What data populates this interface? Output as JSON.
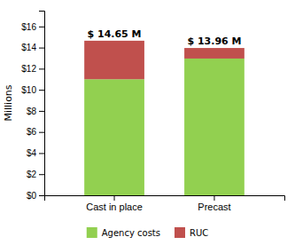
{
  "chart_data": {
    "type": "bar",
    "stacked": true,
    "categories": [
      "Cast in place",
      "Precast"
    ],
    "series": [
      {
        "name": "Agency costs",
        "color": "#92D050",
        "values": [
          11.0,
          12.96
        ]
      },
      {
        "name": "RUC",
        "color": "#C0504D",
        "values": [
          3.65,
          1.0
        ]
      }
    ],
    "annotations": [
      {
        "text": "$ 14.65 M",
        "x": "Cast in place",
        "y": 14.65
      },
      {
        "text": "$ 13.96 M",
        "x": "Precast",
        "y": 13.96
      }
    ],
    "y_label": "Millions",
    "ylim": [
      0,
      17.5
    ],
    "yticks": [
      {
        "value": 0,
        "label": "$0"
      },
      {
        "value": 2,
        "label": "$2"
      },
      {
        "value": 4,
        "label": "$4"
      },
      {
        "value": 6,
        "label": "$6"
      },
      {
        "value": 8,
        "label": "$8"
      },
      {
        "value": 10,
        "label": "$10"
      },
      {
        "value": 12,
        "label": "$12"
      },
      {
        "value": 14,
        "label": "$14"
      },
      {
        "value": 16,
        "label": "$16"
      }
    ],
    "grid": false,
    "legend": "bottom"
  }
}
